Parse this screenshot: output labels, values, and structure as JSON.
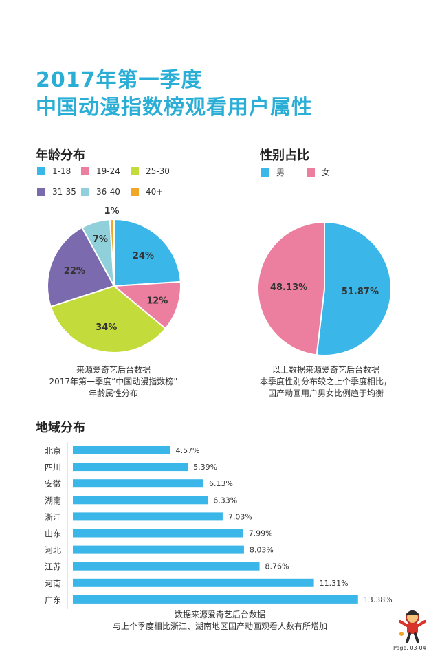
{
  "title": {
    "line1": "2017年第一季度",
    "line2": "中国动漫指数榜观看用户属性"
  },
  "age": {
    "heading": "年龄分布",
    "caption": [
      "来源爱奇艺后台数据",
      "2017年第一季度“中国动漫指数榜”",
      "年龄属性分布"
    ]
  },
  "gender": {
    "heading": "性别占比",
    "caption": [
      "以上数据来源爱奇艺后台数据",
      "本季度性别分布较之上个季度相比，",
      "国产动画用户男女比例趋于均衡"
    ]
  },
  "region": {
    "heading": "地域分布",
    "caption": [
      "数据来源爱奇艺后台数据",
      "与上个季度相比浙江、湖南地区国产动画观看人数有所增加"
    ]
  },
  "colors": {
    "title": "#2aaed6",
    "age_1_18": "#3bb6e8",
    "age_19_24": "#ec7fa0",
    "age_25_30": "#c3dc3c",
    "age_31_35": "#7b6bae",
    "age_36_40": "#8fd0da",
    "age_40_plus": "#f0a626",
    "male": "#3bb6e8",
    "female": "#ec7fa0",
    "bar": "#3bb6e8"
  },
  "footer": {
    "page": "Page. 03-04",
    "logo_icon": "cartoon-mascot-icon"
  },
  "chart_data": [
    {
      "type": "pie",
      "title": "年龄分布",
      "labels": [
        "1-18",
        "19-24",
        "25-30",
        "31-35",
        "36-40",
        "40+"
      ],
      "values": [
        24,
        12,
        34,
        22,
        7,
        1
      ],
      "value_labels": [
        "24%",
        "12%",
        "34%",
        "22%",
        "7%",
        "1%"
      ],
      "legend": "top"
    },
    {
      "type": "pie",
      "title": "性别占比",
      "labels": [
        "男",
        "女"
      ],
      "values": [
        51.87,
        48.13
      ],
      "value_labels": [
        "51.87%",
        "48.13%"
      ],
      "legend": "top"
    },
    {
      "type": "bar",
      "orientation": "horizontal",
      "title": "地域分布",
      "categories": [
        "北京",
        "四川",
        "安徽",
        "湖南",
        "浙江",
        "山东",
        "河北",
        "江苏",
        "河南",
        "广东"
      ],
      "values": [
        4.57,
        5.39,
        6.13,
        6.33,
        7.03,
        7.99,
        8.03,
        8.76,
        11.31,
        13.38
      ],
      "value_labels": [
        "4.57%",
        "5.39%",
        "6.13%",
        "6.33%",
        "7.03%",
        "7.99%",
        "8.03%",
        "8.76%",
        "11.31%",
        "13.38%"
      ]
    }
  ]
}
